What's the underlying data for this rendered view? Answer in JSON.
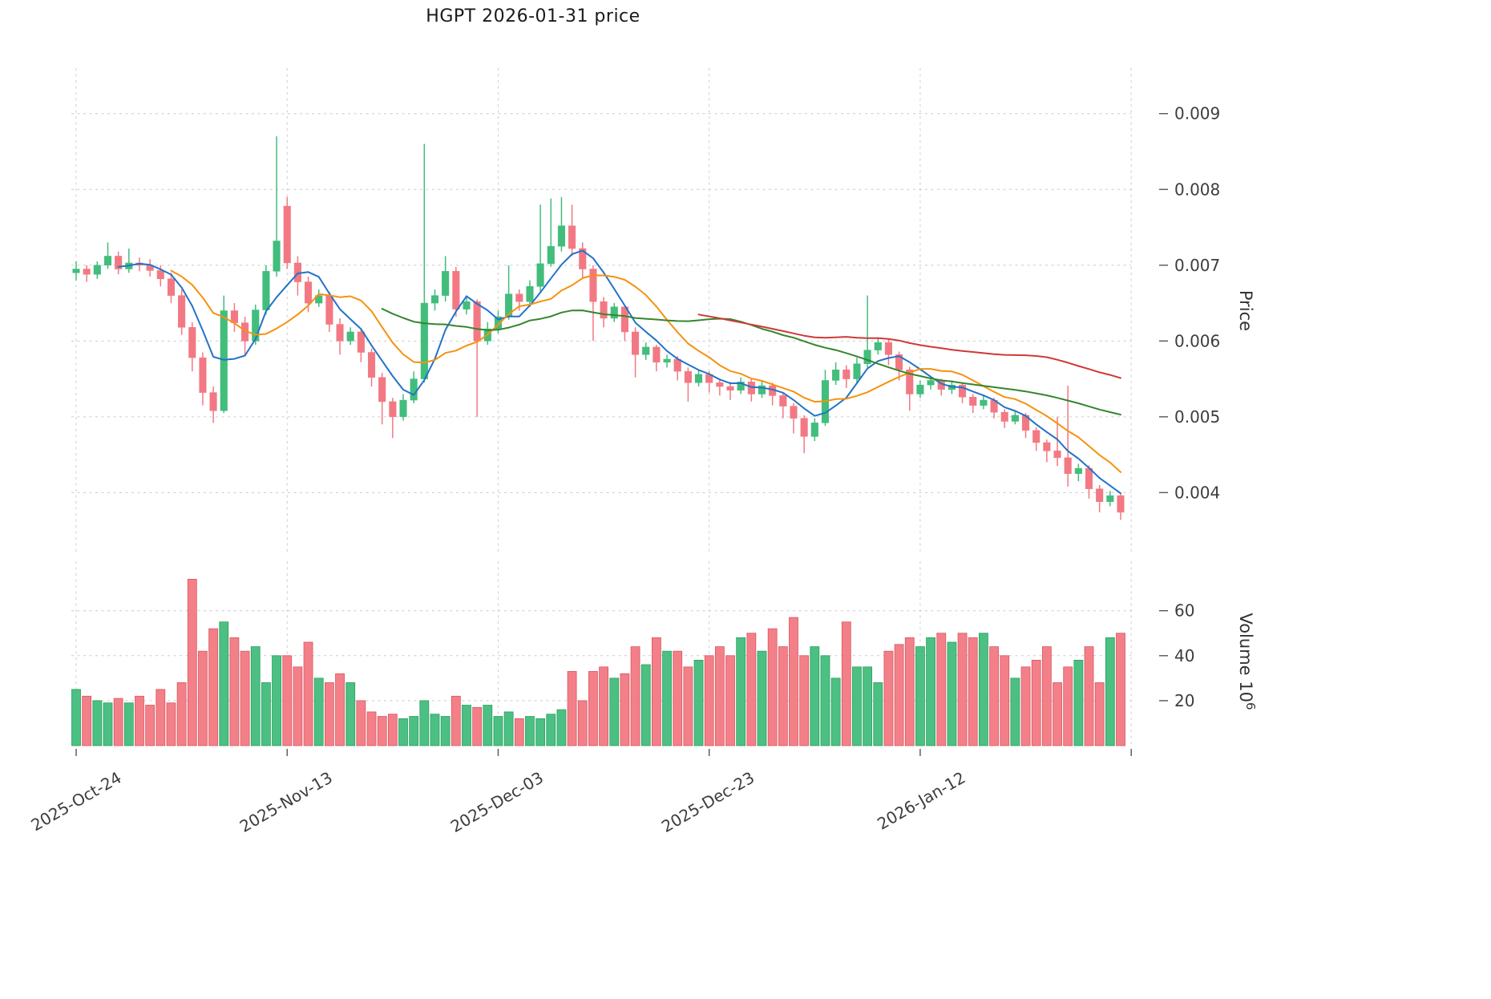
{
  "chart_data": {
    "type": "candlestick",
    "title": "HGPT  2026-01-31  price",
    "ylabel_price": "Price",
    "ylabel_volume": "Volume 10^6",
    "legend_position": "none",
    "grid": "dashed",
    "x_ticks": [
      {
        "index": 0,
        "label": "2025-Oct-24"
      },
      {
        "index": 20,
        "label": "2025-Nov-13"
      },
      {
        "index": 40,
        "label": "2025-Dec-03"
      },
      {
        "index": 60,
        "label": "2025-Dec-23"
      },
      {
        "index": 80,
        "label": "2026-Jan-12"
      }
    ],
    "price_ticks": [
      0.004,
      0.005,
      0.006,
      0.007,
      0.008,
      0.009
    ],
    "volume_ticks": [
      20,
      40,
      60
    ],
    "price_axis_range": [
      0.0032,
      0.0096
    ],
    "volume_axis_range": [
      0,
      82
    ],
    "moving_averages": [
      {
        "window": 5,
        "color": "#2273c8"
      },
      {
        "window": 10,
        "color": "#f5920f"
      },
      {
        "window": 30,
        "color": "#35862d"
      },
      {
        "window": 60,
        "color": "#cf3838"
      }
    ],
    "colors": {
      "up": "#42bd7c",
      "down": "#f27983",
      "up_edge": "#2a9e5f",
      "down_edge": "#d9565f",
      "grid": "#cccccc",
      "tick_text": "#3d3d3d",
      "axis_label_text": "#333333"
    },
    "ohlc": [
      [
        0.0069,
        0.00705,
        0.0068,
        0.00695
      ],
      [
        0.00695,
        0.007,
        0.00678,
        0.00688
      ],
      [
        0.00688,
        0.00705,
        0.00682,
        0.007
      ],
      [
        0.007,
        0.0073,
        0.00695,
        0.00712
      ],
      [
        0.00712,
        0.00718,
        0.00688,
        0.00695
      ],
      [
        0.00695,
        0.00722,
        0.0069,
        0.00703
      ],
      [
        0.00703,
        0.0071,
        0.00692,
        0.007
      ],
      [
        0.007,
        0.00708,
        0.00685,
        0.00693
      ],
      [
        0.00693,
        0.007,
        0.00672,
        0.00682
      ],
      [
        0.00682,
        0.0069,
        0.0065,
        0.0066
      ],
      [
        0.0066,
        0.00668,
        0.00608,
        0.00618
      ],
      [
        0.00618,
        0.00625,
        0.0056,
        0.00578
      ],
      [
        0.00578,
        0.00585,
        0.00515,
        0.00532
      ],
      [
        0.00532,
        0.0054,
        0.00492,
        0.00508
      ],
      [
        0.00508,
        0.0066,
        0.00505,
        0.0064
      ],
      [
        0.0064,
        0.0065,
        0.00612,
        0.00624
      ],
      [
        0.00624,
        0.00632,
        0.0058,
        0.006
      ],
      [
        0.006,
        0.00648,
        0.00595,
        0.00641
      ],
      [
        0.00641,
        0.007,
        0.00635,
        0.00692
      ],
      [
        0.00692,
        0.0087,
        0.00685,
        0.00732
      ],
      [
        0.00778,
        0.0079,
        0.00695,
        0.00703
      ],
      [
        0.00703,
        0.00712,
        0.0066,
        0.00678
      ],
      [
        0.00678,
        0.00685,
        0.00638,
        0.0065
      ],
      [
        0.0065,
        0.00668,
        0.00645,
        0.0066
      ],
      [
        0.0066,
        0.00665,
        0.00612,
        0.00622
      ],
      [
        0.00622,
        0.0063,
        0.00582,
        0.006
      ],
      [
        0.006,
        0.00618,
        0.00595,
        0.00612
      ],
      [
        0.00612,
        0.00615,
        0.00572,
        0.00585
      ],
      [
        0.00585,
        0.0059,
        0.0054,
        0.00552
      ],
      [
        0.00552,
        0.00558,
        0.0049,
        0.0052
      ],
      [
        0.0052,
        0.00525,
        0.00472,
        0.005
      ],
      [
        0.005,
        0.0053,
        0.00495,
        0.00522
      ],
      [
        0.00522,
        0.0056,
        0.00518,
        0.0055
      ],
      [
        0.0055,
        0.0086,
        0.00545,
        0.0065
      ],
      [
        0.0065,
        0.00668,
        0.0064,
        0.0066
      ],
      [
        0.0066,
        0.00712,
        0.00652,
        0.00692
      ],
      [
        0.00692,
        0.00698,
        0.00632,
        0.00642
      ],
      [
        0.00642,
        0.0066,
        0.00635,
        0.00652
      ],
      [
        0.00652,
        0.00655,
        0.005,
        0.006
      ],
      [
        0.006,
        0.00625,
        0.00595,
        0.00616
      ],
      [
        0.00616,
        0.0064,
        0.0061,
        0.00632
      ],
      [
        0.00632,
        0.007,
        0.00628,
        0.00662
      ],
      [
        0.00662,
        0.00668,
        0.0064,
        0.00652
      ],
      [
        0.00652,
        0.0068,
        0.00645,
        0.00672
      ],
      [
        0.00672,
        0.0078,
        0.00665,
        0.00702
      ],
      [
        0.00702,
        0.00788,
        0.00698,
        0.00725
      ],
      [
        0.00725,
        0.0079,
        0.00718,
        0.00752
      ],
      [
        0.00752,
        0.0078,
        0.00712,
        0.00722
      ],
      [
        0.00722,
        0.0073,
        0.00682,
        0.00695
      ],
      [
        0.00695,
        0.007,
        0.006,
        0.00652
      ],
      [
        0.00652,
        0.00658,
        0.00618,
        0.0063
      ],
      [
        0.0063,
        0.0065,
        0.00625,
        0.00645
      ],
      [
        0.00645,
        0.00648,
        0.006,
        0.00612
      ],
      [
        0.00612,
        0.00618,
        0.00552,
        0.00582
      ],
      [
        0.00582,
        0.00598,
        0.00575,
        0.00592
      ],
      [
        0.00592,
        0.00595,
        0.0056,
        0.00572
      ],
      [
        0.00572,
        0.00582,
        0.00565,
        0.00576
      ],
      [
        0.00576,
        0.0058,
        0.00548,
        0.0056
      ],
      [
        0.0056,
        0.00565,
        0.0052,
        0.00545
      ],
      [
        0.00545,
        0.00562,
        0.0054,
        0.00556
      ],
      [
        0.00556,
        0.0056,
        0.00532,
        0.00545
      ],
      [
        0.00545,
        0.0055,
        0.00528,
        0.0054
      ],
      [
        0.0054,
        0.00546,
        0.00522,
        0.00535
      ],
      [
        0.00535,
        0.00552,
        0.0053,
        0.00546
      ],
      [
        0.00546,
        0.0055,
        0.0052,
        0.0053
      ],
      [
        0.0053,
        0.00548,
        0.00525,
        0.00541
      ],
      [
        0.00541,
        0.00545,
        0.00515,
        0.00528
      ],
      [
        0.00528,
        0.00532,
        0.00498,
        0.00514
      ],
      [
        0.00514,
        0.00518,
        0.00478,
        0.00498
      ],
      [
        0.00498,
        0.00502,
        0.00452,
        0.00474
      ],
      [
        0.00474,
        0.00498,
        0.00468,
        0.00492
      ],
      [
        0.00492,
        0.00562,
        0.00488,
        0.00548
      ],
      [
        0.00548,
        0.00572,
        0.00542,
        0.00562
      ],
      [
        0.00562,
        0.00568,
        0.00538,
        0.0055
      ],
      [
        0.0055,
        0.00578,
        0.00545,
        0.0057
      ],
      [
        0.0057,
        0.0066,
        0.00565,
        0.00588
      ],
      [
        0.00588,
        0.00605,
        0.00582,
        0.00598
      ],
      [
        0.00598,
        0.00602,
        0.00568,
        0.00582
      ],
      [
        0.00582,
        0.00586,
        0.00548,
        0.00562
      ],
      [
        0.00562,
        0.00566,
        0.00508,
        0.0053
      ],
      [
        0.0053,
        0.00548,
        0.00525,
        0.00542
      ],
      [
        0.00542,
        0.00552,
        0.00536,
        0.00548
      ],
      [
        0.00548,
        0.0055,
        0.00528,
        0.00536
      ],
      [
        0.00536,
        0.00548,
        0.0053,
        0.00542
      ],
      [
        0.00542,
        0.00545,
        0.00518,
        0.00526
      ],
      [
        0.00526,
        0.0053,
        0.00505,
        0.00515
      ],
      [
        0.00515,
        0.00528,
        0.0051,
        0.00522
      ],
      [
        0.00522,
        0.00525,
        0.00498,
        0.00506
      ],
      [
        0.00506,
        0.0051,
        0.00485,
        0.00494
      ],
      [
        0.00494,
        0.00508,
        0.0049,
        0.00502
      ],
      [
        0.00502,
        0.00505,
        0.00472,
        0.00482
      ],
      [
        0.00482,
        0.00486,
        0.00455,
        0.00466
      ],
      [
        0.00466,
        0.0047,
        0.0044,
        0.00455
      ],
      [
        0.00455,
        0.005,
        0.00435,
        0.00446
      ],
      [
        0.00446,
        0.00541,
        0.00408,
        0.00425
      ],
      [
        0.00425,
        0.00438,
        0.00415,
        0.00432
      ],
      [
        0.00432,
        0.00436,
        0.00392,
        0.00405
      ],
      [
        0.00405,
        0.0041,
        0.00374,
        0.00388
      ],
      [
        0.00388,
        0.00402,
        0.00382,
        0.00396
      ],
      [
        0.00396,
        0.00398,
        0.00364,
        0.00374
      ]
    ],
    "volume": [
      25,
      22,
      20,
      19,
      21,
      19,
      22,
      18,
      25,
      19,
      28,
      74,
      42,
      52,
      55,
      48,
      42,
      44,
      28,
      40,
      40,
      35,
      46,
      30,
      28,
      32,
      28,
      20,
      15,
      13,
      14,
      12,
      13,
      20,
      14,
      13,
      22,
      18,
      17,
      18,
      13,
      15,
      12,
      13,
      12,
      14,
      16,
      33,
      20,
      33,
      35,
      30,
      32,
      44,
      36,
      48,
      42,
      42,
      35,
      38,
      40,
      44,
      40,
      48,
      50,
      42,
      52,
      44,
      57,
      40,
      44,
      40,
      30,
      55,
      35,
      35,
      28,
      42,
      45,
      48,
      44,
      48,
      50,
      46,
      50,
      48,
      50,
      44,
      40,
      30,
      35,
      38,
      44,
      28,
      35,
      38,
      44,
      28,
      48,
      50
    ]
  }
}
